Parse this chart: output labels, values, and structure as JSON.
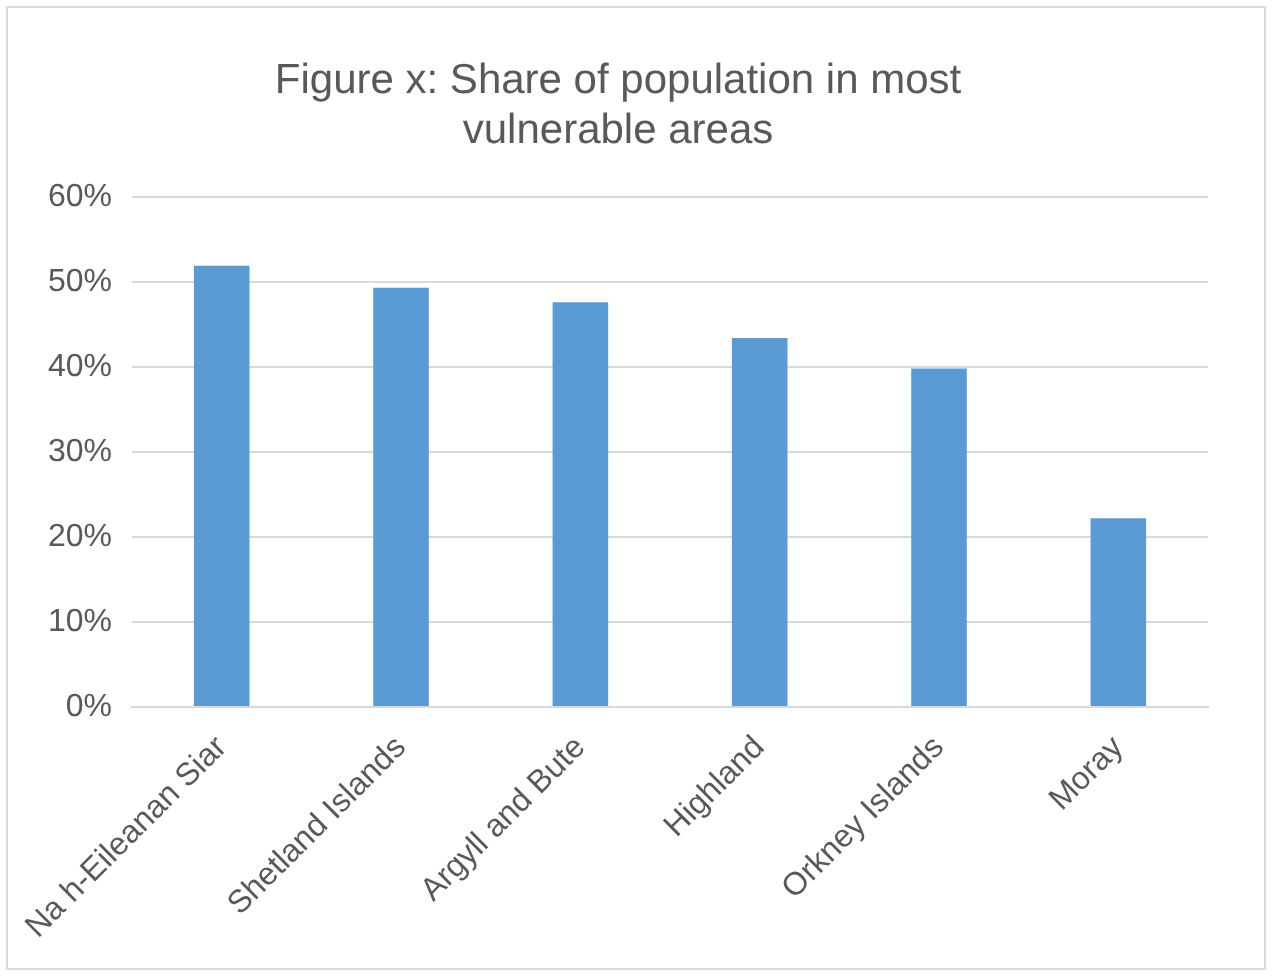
{
  "chart_data": {
    "type": "bar",
    "title": "Figure x: Share of population in most vulnerable areas",
    "categories": [
      "Na h-Eileanan Siar",
      "Shetland Islands",
      "Argyll and Bute",
      "Highland",
      "Orkney Islands",
      "Moray"
    ],
    "values": [
      51.9,
      49.3,
      47.6,
      43.4,
      39.8,
      22.2
    ],
    "color": "#5b9bd5",
    "ylim": [
      0,
      60
    ],
    "yticks": [
      {
        "value": 0,
        "label": "0%"
      },
      {
        "value": 10,
        "label": "10%"
      },
      {
        "value": 20,
        "label": "20%"
      },
      {
        "value": 30,
        "label": "30%"
      },
      {
        "value": 40,
        "label": "40%"
      },
      {
        "value": 50,
        "label": "50%"
      },
      {
        "value": 60,
        "label": "60%"
      }
    ],
    "grid": "y",
    "legend": false
  }
}
